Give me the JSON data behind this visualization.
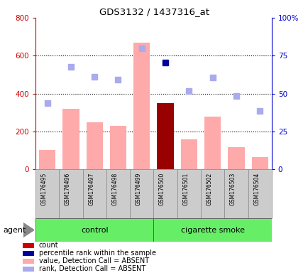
{
  "title": "GDS3132 / 1437316_at",
  "samples": [
    "GSM176495",
    "GSM176496",
    "GSM176497",
    "GSM176498",
    "GSM176499",
    "GSM176500",
    "GSM176501",
    "GSM176502",
    "GSM176503",
    "GSM176504"
  ],
  "bar_values": [
    100,
    320,
    248,
    228,
    670,
    350,
    158,
    278,
    118,
    65
  ],
  "bar_colors": [
    "#ffaaaa",
    "#ffaaaa",
    "#ffaaaa",
    "#ffaaaa",
    "#ffaaaa",
    "#990000",
    "#ffaaaa",
    "#ffaaaa",
    "#ffaaaa",
    "#ffaaaa"
  ],
  "rank_dots_left": [
    350,
    540,
    490,
    475,
    638,
    null,
    415,
    485,
    388,
    308
  ],
  "percentile_dots_left": [
    null,
    null,
    null,
    null,
    null,
    565,
    null,
    null,
    null,
    null
  ],
  "ylim_left": [
    0,
    800
  ],
  "ylim_right": [
    0,
    100
  ],
  "yticks_left": [
    0,
    200,
    400,
    600,
    800
  ],
  "yticks_right": [
    0,
    25,
    50,
    75,
    100
  ],
  "control_indices": [
    0,
    1,
    2,
    3,
    4
  ],
  "smoke_indices": [
    5,
    6,
    7,
    8,
    9
  ],
  "control_label": "control",
  "smoke_label": "cigarette smoke",
  "agent_label": "agent",
  "group_bg_color": "#66ee66",
  "tick_bg_color": "#cccccc",
  "left_axis_color": "#cc0000",
  "right_axis_color": "#0000cc",
  "dot_rank_color": "#aaaaee",
  "dot_percentile_color": "#000099",
  "legend_items": [
    {
      "color": "#cc0000",
      "label": "count"
    },
    {
      "color": "#000099",
      "label": "percentile rank within the sample"
    },
    {
      "color": "#ffaaaa",
      "label": "value, Detection Call = ABSENT"
    },
    {
      "color": "#aaaaee",
      "label": "rank, Detection Call = ABSENT"
    }
  ]
}
